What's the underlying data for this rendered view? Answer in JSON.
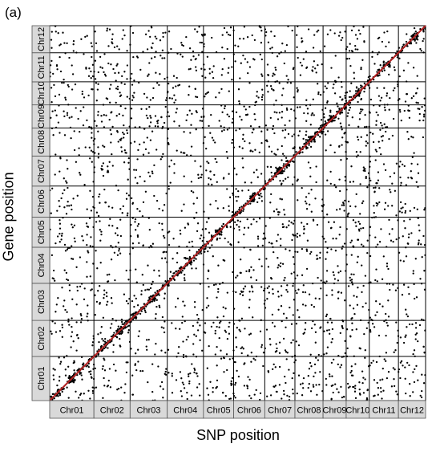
{
  "panel_label": "(a)",
  "chart_data": {
    "type": "scatter",
    "title": "",
    "xlabel": "SNP position",
    "ylabel": "Gene position",
    "x_categories": [
      "Chr01",
      "Chr02",
      "Chr03",
      "Chr04",
      "Chr05",
      "Chr06",
      "Chr07",
      "Chr08",
      "Chr09",
      "Chr10",
      "Chr11",
      "Chr12"
    ],
    "y_categories": [
      "Chr01",
      "Chr02",
      "Chr03",
      "Chr04",
      "Chr05",
      "Chr06",
      "Chr07",
      "Chr08",
      "Chr09",
      "Chr10",
      "Chr11",
      "Chr12"
    ],
    "chromosome_relative_lengths": [
      44,
      36,
      37,
      36,
      30,
      31,
      30,
      28,
      23,
      23,
      29,
      27
    ],
    "diagonal_line_color": "#b22222",
    "point_color": "#000000",
    "grid": true,
    "hotspots": [
      {
        "x_chr": "Chr01",
        "y_chr": "Chr01",
        "pos": 0.5
      },
      {
        "x_chr": "Chr02",
        "y_chr": "Chr02",
        "pos": 0.7
      },
      {
        "x_chr": "Chr03",
        "y_chr": "Chr03",
        "pos": 0.6
      },
      {
        "x_chr": "Chr04",
        "y_chr": "Chr04",
        "pos": 0.6
      },
      {
        "x_chr": "Chr05",
        "y_chr": "Chr05",
        "pos": 0.5
      },
      {
        "x_chr": "Chr06",
        "y_chr": "Chr06",
        "pos": 0.6
      },
      {
        "x_chr": "Chr07",
        "y_chr": "Chr07",
        "pos": 0.5
      },
      {
        "x_chr": "Chr08",
        "y_chr": "Chr08",
        "pos": 0.6
      },
      {
        "x_chr": "Chr09",
        "y_chr": "Chr09",
        "pos": 0.4
      },
      {
        "x_chr": "Chr10",
        "y_chr": "Chr10",
        "pos": 0.5
      },
      {
        "x_chr": "Chr11",
        "y_chr": "Chr11",
        "pos": 0.6
      },
      {
        "x_chr": "Chr12",
        "y_chr": "Chr12",
        "pos": 0.6
      }
    ]
  }
}
